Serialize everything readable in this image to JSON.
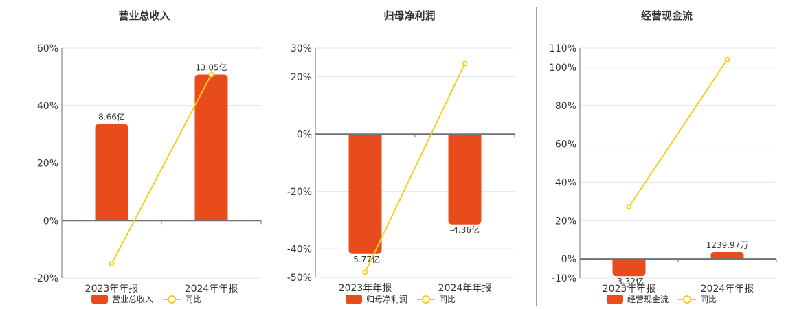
{
  "colors": {
    "bar": "#e84c1c",
    "line": "#f2cf1b",
    "grid": "#dde3ee",
    "axis": "#6e7079",
    "text": "#333333",
    "divider": "#9e9e9e"
  },
  "legend": {
    "line_label": "同比"
  },
  "charts": [
    {
      "title": "营业总收入",
      "bar_label": "营业总收入",
      "yticks": [
        "60%",
        "40%",
        "20%",
        "0%",
        "-20%"
      ],
      "categories": [
        "2023年年报",
        "2024年年报"
      ],
      "bar_value_labels": [
        "8.66亿",
        "13.05亿"
      ]
    },
    {
      "title": "归母净利润",
      "bar_label": "归母净利润",
      "yticks": [
        "30%",
        "20%",
        "0%",
        "-20%",
        "-40%",
        "-50%"
      ],
      "categories": [
        "2023年年报",
        "2024年年报"
      ],
      "bar_value_labels": [
        "-5.77亿",
        "-4.36亿"
      ]
    },
    {
      "title": "经营现金流",
      "bar_label": "经营现金流",
      "yticks": [
        "110%",
        "100%",
        "80%",
        "60%",
        "40%",
        "20%",
        "0%",
        "-10%"
      ],
      "categories": [
        "2023年年报",
        "2024年年报"
      ],
      "bar_value_labels": [
        "-3.32亿",
        "1239.97万"
      ]
    }
  ],
  "chart_data": [
    {
      "type": "bar",
      "title": "营业总收入",
      "categories": [
        "2023年年报",
        "2024年年报"
      ],
      "series": [
        {
          "name": "营业总收入",
          "type": "bar",
          "values": [
            33.6,
            50.8
          ],
          "labels": [
            "8.66亿",
            "13.05亿"
          ]
        },
        {
          "name": "同比",
          "type": "line",
          "values": [
            -15.0,
            50.8
          ]
        }
      ],
      "ylabel": "",
      "yticks": [
        60,
        40,
        20,
        0,
        -20
      ],
      "ylim": [
        -20,
        60
      ],
      "grid": true,
      "legend_position": "bottom"
    },
    {
      "type": "bar",
      "title": "归母净利润",
      "categories": [
        "2023年年报",
        "2024年年报"
      ],
      "series": [
        {
          "name": "归母净利润",
          "type": "bar",
          "values": [
            -41.8,
            -31.5
          ],
          "labels": [
            "-5.77亿",
            "-4.36亿"
          ]
        },
        {
          "name": "同比",
          "type": "line",
          "values": [
            -48.2,
            24.6
          ]
        }
      ],
      "ylabel": "",
      "yticks": [
        30,
        20,
        0,
        -20,
        -40,
        -50
      ],
      "ylim": [
        -50,
        30
      ],
      "grid": true,
      "legend_position": "bottom"
    },
    {
      "type": "bar",
      "title": "经营现金流",
      "categories": [
        "2023年年报",
        "2024年年报"
      ],
      "series": [
        {
          "name": "经营现金流",
          "type": "bar",
          "values": [
            -9.0,
            3.6
          ],
          "labels": [
            "-3.32亿",
            "1239.97万"
          ]
        },
        {
          "name": "同比",
          "type": "line",
          "values": [
            27.2,
            104.0
          ]
        }
      ],
      "ylabel": "",
      "yticks": [
        110,
        100,
        80,
        60,
        40,
        20,
        0,
        -10
      ],
      "ylim": [
        -10,
        110
      ],
      "grid": true,
      "legend_position": "bottom"
    }
  ]
}
